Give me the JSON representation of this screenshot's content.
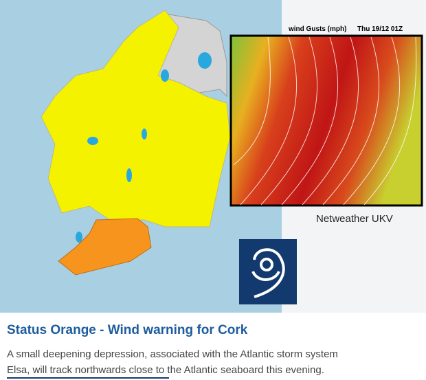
{
  "map": {
    "inset_title": "wind Gusts (mph)",
    "inset_time": "Thu 19/12 01Z",
    "credit": "Netweather UKV"
  },
  "article": {
    "headline": "Status Orange - Wind warning for Cork",
    "body_lines": [
      "A small deepening depression, associated with the Atlantic storm system",
      "Elsa, will track northwards close to the Atlantic seaboard this evening."
    ]
  }
}
